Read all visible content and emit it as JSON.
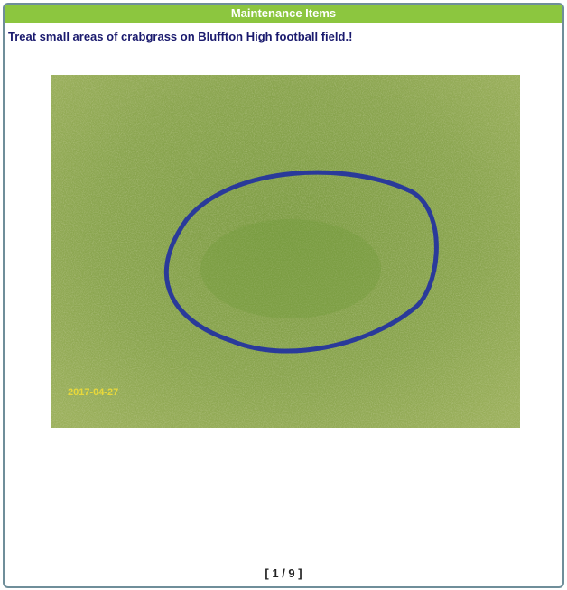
{
  "header": {
    "title": "Maintenance Items"
  },
  "item": {
    "description": "Treat small areas of crabgrass on Bluffton High football field.!",
    "image": {
      "timestamp": "2017-04-27"
    }
  },
  "pager": {
    "label": "[ 1 / 9 ]"
  }
}
